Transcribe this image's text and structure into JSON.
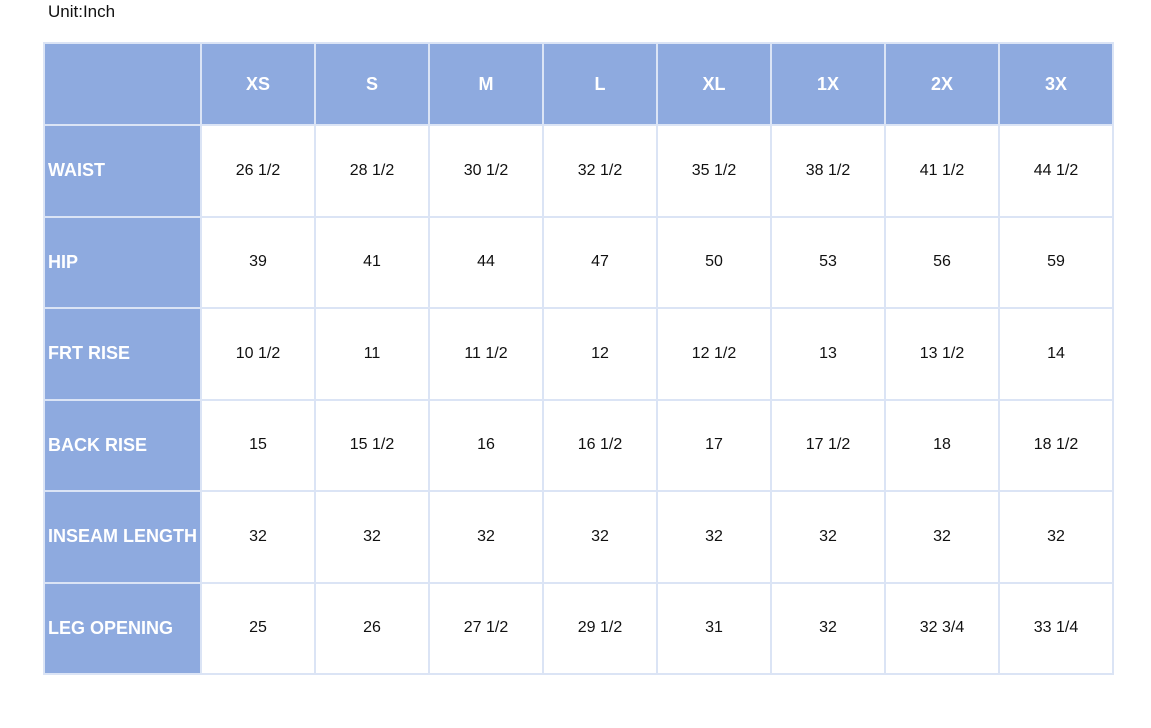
{
  "unit_label": "Unit:Inch",
  "table": {
    "columns": [
      "XS",
      "S",
      "M",
      "L",
      "XL",
      "1X",
      "2X",
      "3X"
    ],
    "rows": [
      {
        "label": "WAIST",
        "values": [
          "26 1/2",
          "28 1/2",
          "30 1/2",
          "32 1/2",
          "35 1/2",
          "38 1/2",
          "41 1/2",
          "44 1/2"
        ]
      },
      {
        "label": "HIP",
        "values": [
          "39",
          "41",
          "44",
          "47",
          "50",
          "53",
          "56",
          "59"
        ]
      },
      {
        "label": "FRT RISE",
        "values": [
          "10 1/2",
          "11",
          "11 1/2",
          "12",
          "12 1/2",
          "13",
          "13 1/2",
          "14"
        ]
      },
      {
        "label": "BACK RISE",
        "values": [
          "15",
          "15 1/2",
          "16",
          "16 1/2",
          "17",
          "17 1/2",
          "18",
          "18 1/2"
        ]
      },
      {
        "label": "INSEAM LENGTH",
        "values": [
          "32",
          "32",
          "32",
          "32",
          "32",
          "32",
          "32",
          "32"
        ]
      },
      {
        "label": "LEG OPENING",
        "values": [
          "25",
          "26",
          "27 1/2",
          "29 1/2",
          "31",
          "32",
          "32 3/4",
          "33 1/4"
        ]
      }
    ]
  }
}
